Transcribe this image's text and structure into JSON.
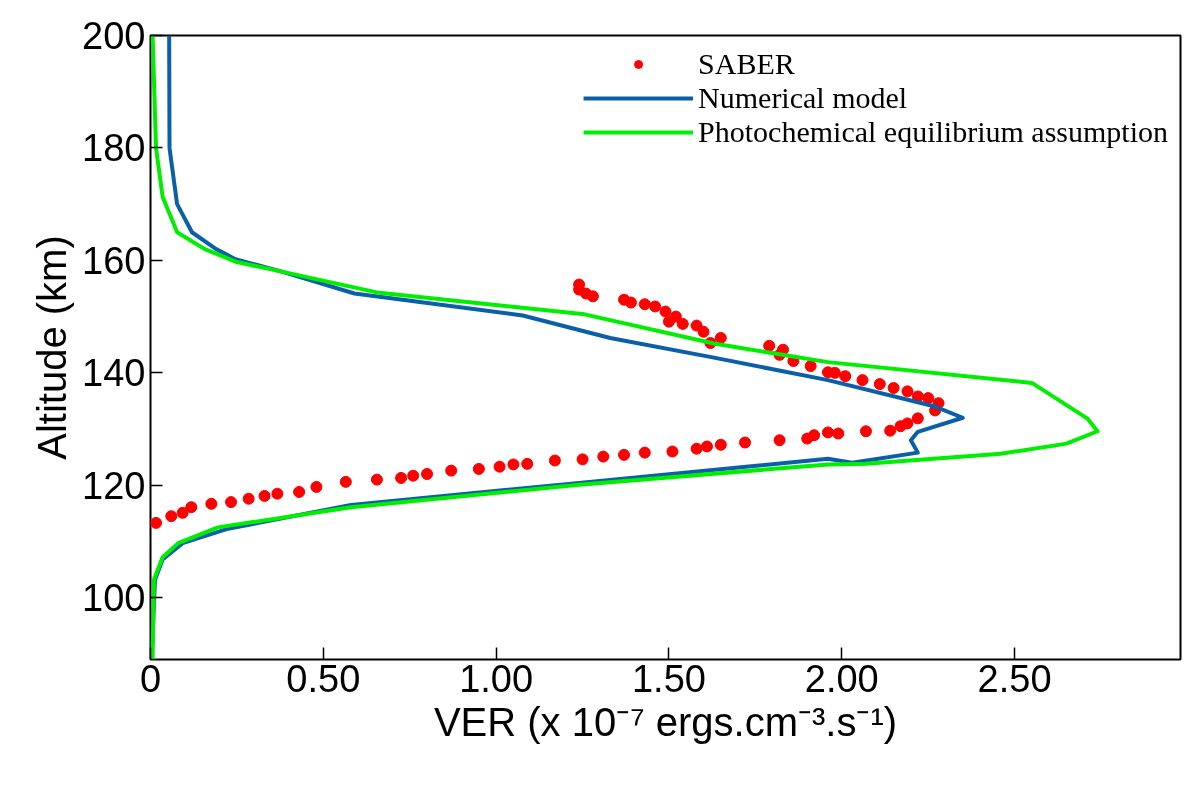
{
  "chart_data": {
    "type": "line",
    "xlabel": "VER (x 10⁻⁷ ergs.cm⁻³.s⁻¹)",
    "ylabel": "Altitude (km)",
    "xlim": [
      0,
      2.98
    ],
    "ylim": [
      89,
      200
    ],
    "xticks": [
      {
        "value": 0,
        "label": "0"
      },
      {
        "value": 0.5,
        "label": "0.50"
      },
      {
        "value": 1,
        "label": "1.00"
      },
      {
        "value": 1.5,
        "label": "1.50"
      },
      {
        "value": 2,
        "label": "2.00"
      },
      {
        "value": 2.5,
        "label": "2.50"
      }
    ],
    "yticks": [
      100,
      120,
      140,
      160,
      180,
      200
    ],
    "grid": false,
    "legend": "top right",
    "series": [
      {
        "name": "SABER",
        "type": "scatter",
        "marker": "circle",
        "color": "#ff0000",
        "x": [
          0.016,
          0.06,
          0.093,
          0.118,
          0.176,
          0.233,
          0.284,
          0.33,
          0.367,
          0.43,
          0.48,
          0.565,
          0.655,
          0.725,
          0.76,
          0.8,
          0.87,
          0.95,
          1.01,
          1.05,
          1.09,
          1.17,
          1.25,
          1.31,
          1.37,
          1.43,
          1.51,
          1.58,
          1.61,
          1.65,
          1.72,
          1.82,
          1.9,
          1.92,
          1.96,
          1.99,
          2.07,
          2.14,
          2.17,
          2.19,
          2.22,
          2.27,
          2.28,
          2.25,
          2.22,
          2.19,
          2.15,
          2.11,
          2.06,
          2.01,
          1.98,
          1.96,
          1.91,
          1.86,
          1.82,
          1.83,
          1.79,
          1.65,
          1.62,
          1.6,
          1.58,
          1.54,
          1.52,
          1.5,
          1.49,
          1.46,
          1.43,
          1.39,
          1.37,
          1.28,
          1.26,
          1.24,
          1.24
        ],
        "values": [
          113.3,
          114.5,
          115.1,
          116.1,
          116.7,
          117.0,
          117.6,
          118.1,
          118.5,
          118.8,
          119.7,
          120.6,
          121.0,
          121.3,
          121.7,
          122.0,
          122.6,
          122.9,
          123.3,
          123.7,
          123.8,
          124.4,
          124.6,
          125.1,
          125.4,
          125.8,
          126.0,
          126.5,
          126.9,
          127.2,
          127.6,
          128.0,
          128.3,
          128.9,
          129.4,
          129.2,
          129.6,
          129.7,
          130.5,
          131.0,
          131.9,
          133.3,
          134.6,
          135.5,
          135.8,
          136.7,
          137.3,
          138.0,
          138.7,
          139.4,
          140.0,
          140.1,
          141.2,
          142.1,
          143.2,
          144.1,
          144.8,
          146.2,
          145.3,
          147.3,
          148.4,
          148.7,
          150.0,
          149.1,
          150.9,
          151.8,
          152.2,
          152.5,
          153.0,
          153.6,
          154.1,
          154.8,
          155.7
        ]
      },
      {
        "name": "Numerical model",
        "line_style": "solid",
        "color": "#0a5fa8",
        "x": [
          0.003,
          0.013,
          0.035,
          0.093,
          0.22,
          0.58,
          1.24,
          1.96,
          2.03,
          2.22,
          2.2,
          2.22,
          2.35,
          2.27,
          1.96,
          1.63,
          1.33,
          1.077,
          0.59,
          0.38,
          0.246,
          0.19,
          0.12,
          0.077,
          0.055,
          0.054
        ],
        "values": [
          89.2,
          103.2,
          106.8,
          109.7,
          112.2,
          116.5,
          120.4,
          124.7,
          124.0,
          125.8,
          128.0,
          129.5,
          132.0,
          134.0,
          138.7,
          142.7,
          146.2,
          150.2,
          154.1,
          158.0,
          160.2,
          162.0,
          165.0,
          170.0,
          180.0,
          200.0
        ]
      },
      {
        "name": "Photochemical equilibrium assumption",
        "line_style": "solid",
        "color": "#00ee00",
        "x": [
          0.006,
          0.01,
          0.035,
          0.08,
          0.195,
          0.58,
          1.24,
          1.96,
          2.07,
          2.46,
          2.65,
          2.74,
          2.71,
          2.55,
          1.96,
          1.63,
          1.256,
          0.655,
          0.35,
          0.25,
          0.157,
          0.077,
          0.035,
          0.016,
          0.006
        ],
        "values": [
          89.2,
          103.2,
          107.2,
          109.7,
          112.5,
          116.1,
          120.1,
          123.7,
          123.8,
          125.6,
          127.4,
          129.6,
          131.9,
          138.2,
          141.9,
          145.2,
          150.4,
          154.3,
          158.4,
          159.7,
          162.0,
          165.0,
          171.3,
          180.0,
          200.0
        ]
      }
    ]
  }
}
